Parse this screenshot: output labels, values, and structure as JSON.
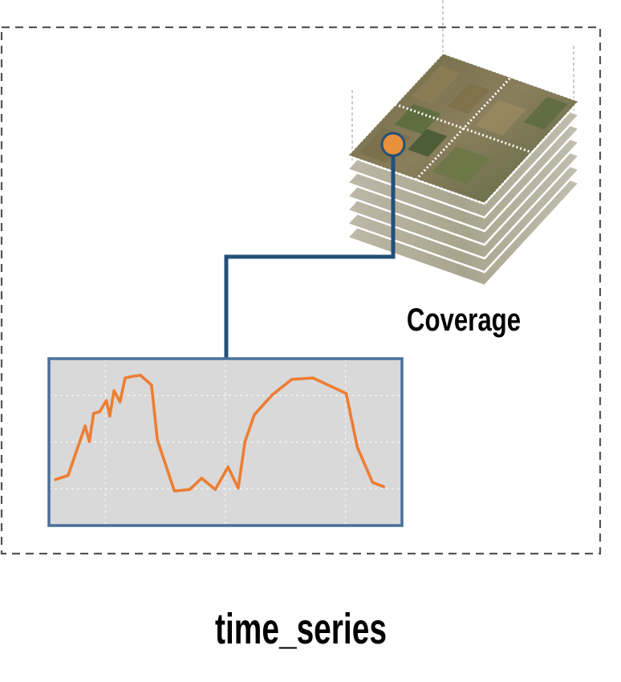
{
  "diagram": {
    "coverage_label": "Coverage",
    "caption": "time_series",
    "colors": {
      "frame_dash": "#555555",
      "connector": "#22507a",
      "pixel_marker_fill": "#e8913a",
      "pixel_marker_stroke": "#22507a",
      "chart_border": "#4a6f9a",
      "chart_background": "#d9d9d9",
      "chart_grid": "#f2f2f2",
      "series_line": "#ed7d31",
      "tile_dotted_border": "#ffffff"
    },
    "coverage_layers": 7
  },
  "chart_data": {
    "type": "line",
    "title": "",
    "xlabel": "",
    "ylabel": "",
    "xlim": [
      0,
      40
    ],
    "ylim": [
      0,
      1
    ],
    "grid": true,
    "series": [
      {
        "x": [
          0,
          1.5,
          3.5,
          4,
          4.5,
          5.2,
          6,
          6.4,
          6.9,
          7.6,
          8.2,
          9,
          10,
          11.3,
          12,
          14,
          15.8,
          17.2,
          18.8,
          20.3,
          21.5,
          22.3,
          23.4,
          25.5,
          27.8,
          30.3,
          34.2,
          35.5,
          37.3,
          38.6
        ],
        "y": [
          0.2,
          0.23,
          0.58,
          0.47,
          0.67,
          0.68,
          0.76,
          0.65,
          0.83,
          0.75,
          0.92,
          0.93,
          0.94,
          0.87,
          0.48,
          0.12,
          0.13,
          0.21,
          0.13,
          0.29,
          0.14,
          0.47,
          0.66,
          0.8,
          0.91,
          0.92,
          0.81,
          0.43,
          0.18,
          0.15
        ]
      }
    ]
  }
}
